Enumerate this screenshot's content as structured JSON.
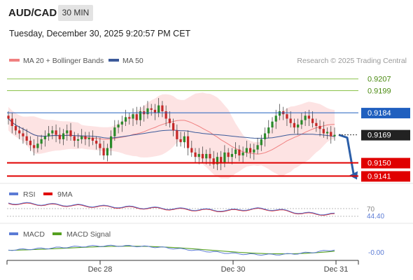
{
  "header": {
    "symbol": "AUD/CAD",
    "timeframe": "30 MIN",
    "datetime": "Tuesday, December 30, 2025 9:20:57 PM CET"
  },
  "legend": {
    "ma20_label": "MA 20 + Bollinger Bands",
    "ma50_label": "MA 50",
    "credit": "Research © 2025 Trading Central"
  },
  "colors": {
    "candle_up": "#2a8a2a",
    "candle_down": "#c62828",
    "ma20": "#f08080",
    "ma50": "#3c5a9a",
    "bollinger_fill": "#fde0e0",
    "resistance": "#8bc34a",
    "support": "#e00000",
    "pivot": "#1f5fbf",
    "last": "#222222",
    "rsi": "#5b7bd5",
    "rsi_ma": "#e00000",
    "macd": "#5b7bd5",
    "macd_signal": "#55a020",
    "forecast_arrow": "#2b5ea8"
  },
  "chart_data": [
    {
      "type": "candlestick",
      "panel": "price",
      "x_ticks": [
        "Dec 28",
        "Dec 30",
        "Dec 31"
      ],
      "ylim": [
        0.9136,
        0.9214
      ],
      "levels": [
        {
          "label": "0.9207",
          "value": 0.9207,
          "kind": "resistance"
        },
        {
          "label": "0.9199",
          "value": 0.9199,
          "kind": "resistance"
        },
        {
          "label": "0.9184",
          "value": 0.9184,
          "kind": "pivot"
        },
        {
          "label": "0.9169",
          "value": 0.9169,
          "kind": "last"
        },
        {
          "label": "0.9150",
          "value": 0.915,
          "kind": "support"
        },
        {
          "label": "0.9141",
          "value": 0.9141,
          "kind": "support"
        }
      ],
      "close": [
        0.918,
        0.9175,
        0.9172,
        0.917,
        0.9168,
        0.9165,
        0.9162,
        0.916,
        0.9163,
        0.9166,
        0.9168,
        0.917,
        0.9172,
        0.9169,
        0.9166,
        0.917,
        0.9172,
        0.9168,
        0.9165,
        0.9166,
        0.9168,
        0.9166,
        0.9167,
        0.9165,
        0.9163,
        0.916,
        0.9155,
        0.916,
        0.9168,
        0.9174,
        0.9176,
        0.9178,
        0.9181,
        0.918,
        0.9183,
        0.9179,
        0.9185,
        0.9183,
        0.9187,
        0.9186,
        0.9184,
        0.9189,
        0.9185,
        0.918,
        0.9177,
        0.9172,
        0.9166,
        0.9164,
        0.9168,
        0.916,
        0.9157,
        0.9154,
        0.9156,
        0.9153,
        0.9156,
        0.9153,
        0.9149,
        0.9154,
        0.915,
        0.9157,
        0.9154,
        0.9156,
        0.9159,
        0.9155,
        0.9157,
        0.916,
        0.9157,
        0.9159,
        0.9162,
        0.9166,
        0.917,
        0.9174,
        0.9178,
        0.9182,
        0.9185,
        0.9183,
        0.918,
        0.9177,
        0.9174,
        0.9176,
        0.9179,
        0.9182,
        0.918,
        0.9177,
        0.9175,
        0.9173,
        0.917,
        0.9171,
        0.9168,
        0.9169
      ]
    },
    {
      "type": "line",
      "panel": "RSI",
      "series": [
        {
          "name": "RSI"
        },
        {
          "name": "9MA"
        }
      ],
      "y_ticks": [
        "70",
        "44.40"
      ],
      "values": {
        "RSI": 44.4
      }
    },
    {
      "type": "line",
      "panel": "MACD",
      "series": [
        {
          "name": "MACD"
        },
        {
          "name": "MACD Signal"
        }
      ],
      "y_ticks": [
        "-0.00"
      ]
    }
  ]
}
